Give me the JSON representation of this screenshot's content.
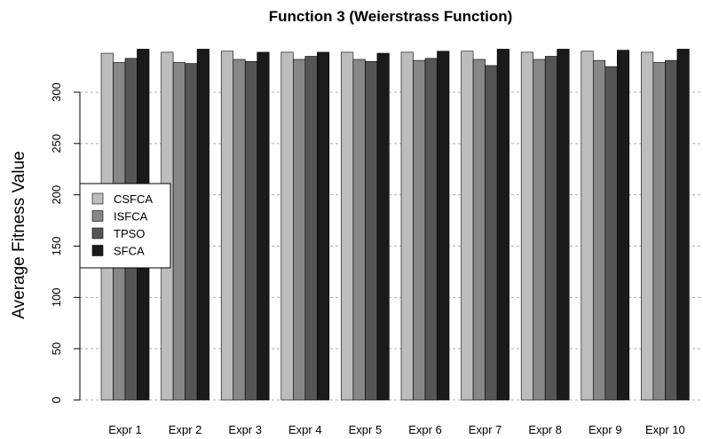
{
  "chart_data": {
    "type": "bar",
    "title": "Function 3 (Weierstrass Function)",
    "xlabel": "",
    "ylabel": "Average Fitness Value",
    "ylim": [
      0,
      340
    ],
    "yticks": [
      0,
      50,
      100,
      150,
      200,
      250,
      300
    ],
    "grid": true,
    "legend_position": "left",
    "categories": [
      "Expr 1",
      "Expr 2",
      "Expr 3",
      "Expr 4",
      "Expr 5",
      "Expr 6",
      "Expr 7",
      "Expr 8",
      "Expr 9",
      "Expr 10"
    ],
    "series": [
      {
        "name": "CSFCA",
        "color": "#bdbdbd",
        "values": [
          338,
          339,
          340,
          339,
          339,
          339,
          340,
          339,
          340,
          339
        ]
      },
      {
        "name": "ISFCA",
        "color": "#878787",
        "values": [
          329,
          329,
          332,
          332,
          332,
          331,
          332,
          332,
          331,
          329
        ]
      },
      {
        "name": "TPSO",
        "color": "#555555",
        "values": [
          333,
          328,
          330,
          335,
          330,
          333,
          326,
          335,
          325,
          331
        ]
      },
      {
        "name": "SFCA",
        "color": "#1a1a1a",
        "values": [
          342,
          342,
          339,
          339,
          338,
          340,
          342,
          342,
          341,
          342
        ]
      }
    ]
  }
}
